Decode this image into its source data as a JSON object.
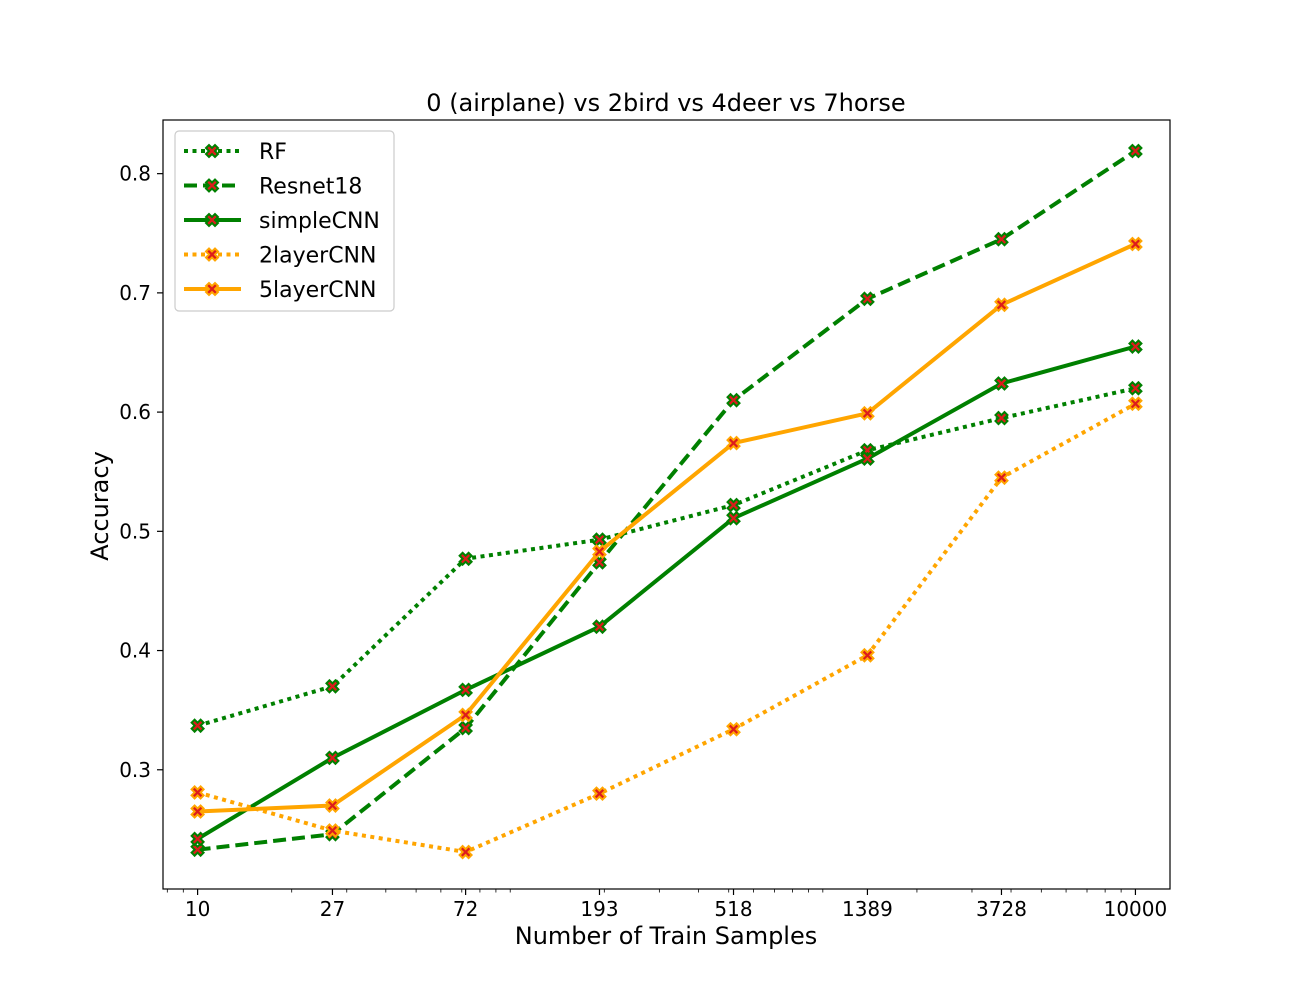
{
  "chart_data": {
    "type": "line",
    "title": "0 (airplane)  vs 2bird vs 4deer vs 7horse",
    "xlabel": "Number of Train Samples",
    "ylabel": "Accuracy",
    "x_scale": "log",
    "x": [
      10,
      27,
      72,
      193,
      518,
      1389,
      3728,
      10000
    ],
    "x_tick_labels": [
      "10",
      "27",
      "72",
      "193",
      "518",
      "1389",
      "3728",
      "10000"
    ],
    "xlim": [
      7.75,
      12900
    ],
    "y_ticks": [
      0.3,
      0.4,
      0.5,
      0.6,
      0.7,
      0.8
    ],
    "y_tick_labels": [
      "0.3",
      "0.4",
      "0.5",
      "0.6",
      "0.7",
      "0.8"
    ],
    "ylim": [
      0.2,
      0.845
    ],
    "grid": false,
    "legend_position": "top-left",
    "marker": {
      "shape": "x",
      "fill": "#dd1c1c"
    },
    "series": [
      {
        "name": "RF",
        "color": "#008000",
        "style": "dotted",
        "values": [
          0.337,
          0.37,
          0.477,
          0.493,
          0.522,
          0.568,
          0.595,
          0.62
        ]
      },
      {
        "name": "Resnet18",
        "color": "#008000",
        "style": "dashed",
        "values": [
          0.233,
          0.246,
          0.335,
          0.474,
          0.61,
          0.695,
          0.745,
          0.819
        ]
      },
      {
        "name": "simpleCNN",
        "color": "#008000",
        "style": "solid",
        "values": [
          0.242,
          0.31,
          0.367,
          0.42,
          0.511,
          0.561,
          0.624,
          0.655
        ]
      },
      {
        "name": "2layerCNN",
        "color": "#ffa500",
        "style": "dotted",
        "values": [
          0.281,
          0.249,
          0.231,
          0.28,
          0.334,
          0.396,
          0.545,
          0.607
        ]
      },
      {
        "name": "5layerCNN",
        "color": "#ffa500",
        "style": "solid",
        "values": [
          0.265,
          0.27,
          0.346,
          0.483,
          0.574,
          0.599,
          0.69,
          0.741
        ]
      }
    ]
  }
}
